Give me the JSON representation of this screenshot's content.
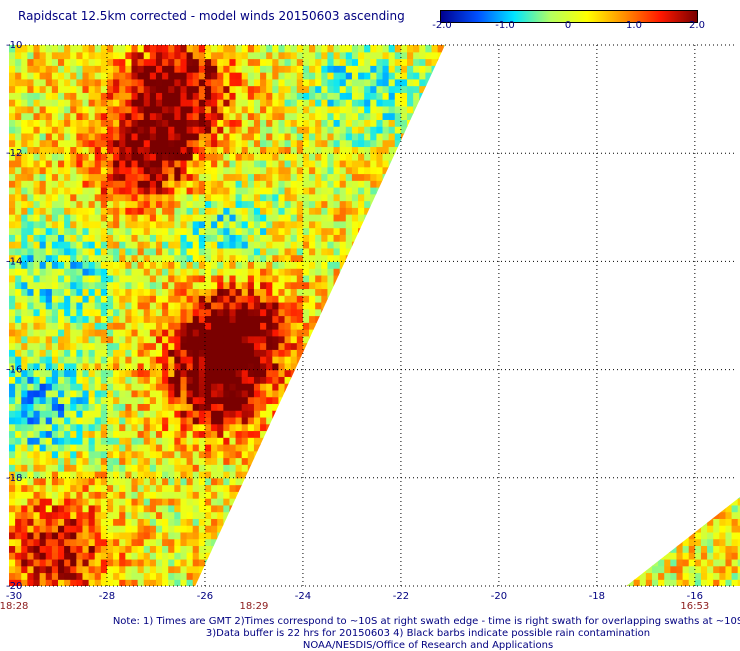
{
  "header": {
    "title": "Rapidscat 12.5km corrected - model winds 20150603 ascending"
  },
  "colorbar": {
    "labels": [
      "-2.0",
      "-1.0",
      "0",
      "1.0",
      "2.0"
    ],
    "stops": [
      "#00008f",
      "#0050ff",
      "#00e5ff",
      "#b4ff60",
      "#ffff00",
      "#ff9000",
      "#ff1800",
      "#7a0000"
    ]
  },
  "chart_data": {
    "type": "heatmap",
    "title": "Rapidscat 12.5km corrected - model winds 20150603 ascending",
    "xlabel": "",
    "ylabel": "",
    "xlim": [
      -30,
      -15
    ],
    "ylim": [
      -20,
      -10
    ],
    "x_ticks": [
      "-30",
      "-28",
      "-26",
      "-24",
      "-22",
      "-20",
      "-18",
      "-16"
    ],
    "y_ticks": [
      "-10",
      "-12",
      "-14",
      "-16",
      "-18",
      "-20"
    ],
    "color_range": [
      -2.0,
      2.0
    ],
    "swath_times": [
      {
        "label": "18:28",
        "lon": -30
      },
      {
        "label": "18:29",
        "lon": -25
      },
      {
        "label": "16:53",
        "lon": -16
      }
    ],
    "swaths": [
      {
        "name": "",
        "right_edge": [
          [
            -21.1,
            -10
          ],
          [
            -26.2,
            -20
          ]
        ],
        "left_edge": -30
      },
      {
        "name": "",
        "left_edge": [
          [
            -15,
            -18.3
          ],
          [
            -17.4,
            -20
          ]
        ],
        "right_edge": -14.8
      }
    ],
    "features": [
      {
        "desc": "strong positive",
        "lon": -25.4,
        "lat": -15.2,
        "value": 2.0
      },
      {
        "desc": "positive",
        "lon": -25.8,
        "lat": -16.3,
        "value": 1.8
      },
      {
        "desc": "positive",
        "lon": -26.6,
        "lat": -10.8,
        "value": 1.9
      },
      {
        "desc": "positive",
        "lon": -27.2,
        "lat": -12.1,
        "value": 1.7
      },
      {
        "desc": "positive",
        "lon": -29.0,
        "lat": -19.3,
        "value": 1.6
      },
      {
        "desc": "negative",
        "lon": -29.4,
        "lat": -16.7,
        "value": -1.2
      },
      {
        "desc": "negative",
        "lon": -25.6,
        "lat": -13.4,
        "value": -0.8
      },
      {
        "desc": "negative",
        "lon": -22.8,
        "lat": -10.8,
        "value": -0.9
      },
      {
        "desc": "negative",
        "lon": -29.0,
        "lat": -14.2,
        "value": -0.9
      }
    ]
  },
  "footer": {
    "note_line1": "Note: 1) Times are GMT 2)Times correspond to ~10S at right swath edge - time is right swath for overlapping swaths at ~10S",
    "note_line2": "3)Data buffer is 22 hrs for 20150603 4) Black barbs indicate possible rain contamination",
    "note_line3": "NOAA/NESDIS/Office of Research and Applications"
  }
}
